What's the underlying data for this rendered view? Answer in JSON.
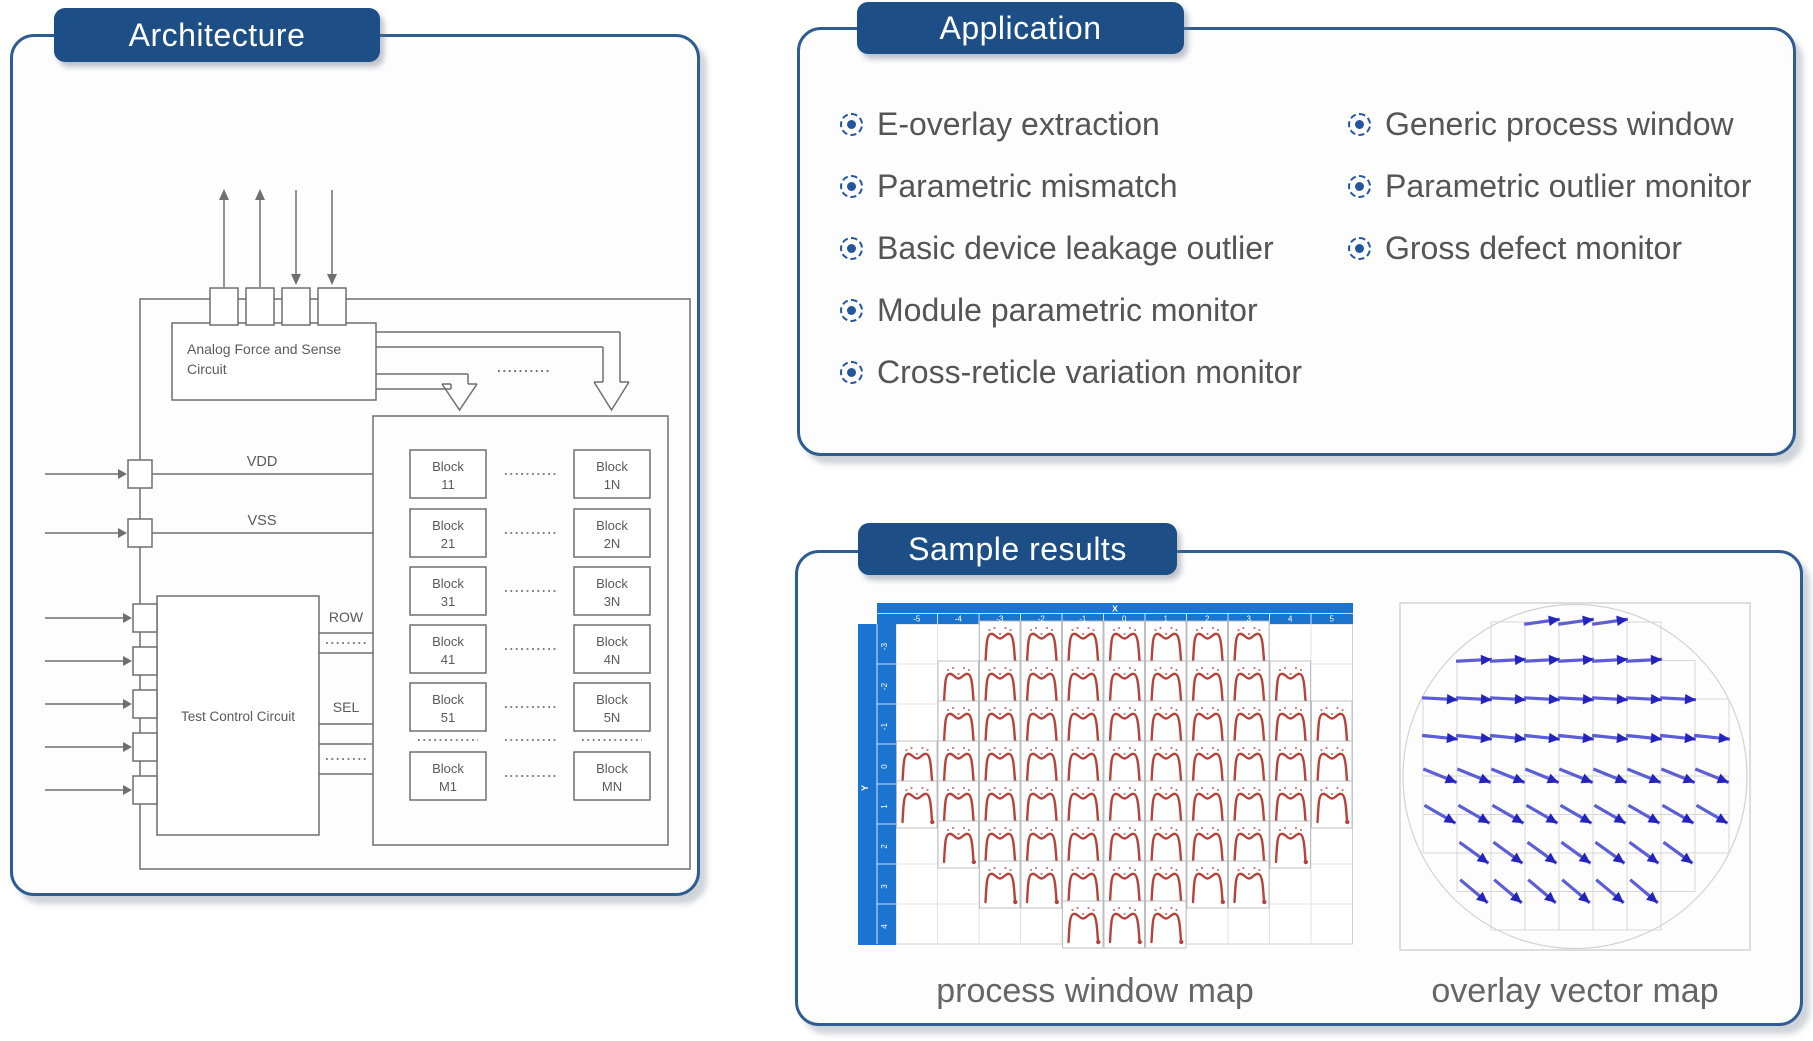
{
  "colors": {
    "panel_border": "#2f5d92",
    "badge_background": "#1d4e85",
    "map_header_blue": "#1b74d0",
    "curve_red": "#b5423b",
    "vector_arrow_blue": "#2424bc",
    "diagram_stroke_gray": "#6f6f6f",
    "text_gray": "#555555"
  },
  "architecture": {
    "title": "Architecture",
    "afs_label": "Analog Force and Sense Circuit",
    "tcc_label": "Test Control Circuit",
    "vdd_label": "VDD",
    "vss_label": "VSS",
    "row_label": "ROW",
    "sel_label": "SEL",
    "block_rows": [
      [
        "Block 11",
        "Block 1N"
      ],
      [
        "Block 21",
        "Block 2N"
      ],
      [
        "Block 31",
        "Block 3N"
      ],
      [
        "Block 41",
        "Block 4N"
      ],
      [
        "Block 51",
        "Block 5N"
      ],
      [
        "Block M1",
        "Block MN"
      ]
    ]
  },
  "application": {
    "title": "Application",
    "items_left": [
      "E-overlay extraction",
      "Parametric mismatch",
      "Basic device leakage outlier",
      "Module parametric monitor",
      "Cross-reticle variation monitor"
    ],
    "items_right": [
      "Generic process window",
      "Parametric outlier monitor",
      "Gross defect monitor"
    ]
  },
  "sample_results": {
    "title": "Sample results",
    "process_window_map": {
      "caption": "process window map",
      "x_axis_label": "X",
      "y_axis_label": "Y",
      "x_ticks": [
        "-5",
        "-4",
        "-3",
        "-2",
        "-1",
        "0",
        "1",
        "2",
        "3",
        "4",
        "5"
      ],
      "y_ticks": [
        "-3",
        "-2",
        "-1",
        "0",
        "1",
        "2",
        "3",
        "4"
      ],
      "wafer_rows": [
        {
          "y": "-3",
          "from": -3,
          "to": 3
        },
        {
          "y": "-2",
          "from": -4,
          "to": 4
        },
        {
          "y": "-1",
          "from": -4,
          "to": 5
        },
        {
          "y": "0",
          "from": -5,
          "to": 5
        },
        {
          "y": "1",
          "from": -5,
          "to": 5
        },
        {
          "y": "2",
          "from": -4,
          "to": 4
        },
        {
          "y": "3",
          "from": -3,
          "to": 3
        },
        {
          "y": "4",
          "from": -1,
          "to": 1
        }
      ]
    },
    "overlay_vector_map": {
      "caption": "overlay vector map",
      "grid_rows": [
        {
          "start": 2,
          "end": 6
        },
        {
          "start": 1,
          "end": 7
        },
        {
          "start": 0,
          "end": 8
        },
        {
          "start": 0,
          "end": 8
        },
        {
          "start": 0,
          "end": 8
        },
        {
          "start": 0,
          "end": 8
        },
        {
          "start": 1,
          "end": 7
        },
        {
          "start": 2,
          "end": 6
        }
      ],
      "arrow_rows": [
        {
          "start": 3,
          "end": 5,
          "angle": -8
        },
        {
          "start": 1,
          "end": 6,
          "angle": -3
        },
        {
          "start": 0,
          "end": 7,
          "angle": 3
        },
        {
          "start": 0,
          "end": 8,
          "angle": 6
        },
        {
          "start": 0,
          "end": 8,
          "angle": 22
        },
        {
          "start": 0,
          "end": 8,
          "angle": 30
        },
        {
          "start": 1,
          "end": 7,
          "angle": 36
        },
        {
          "start": 1,
          "end": 6,
          "angle": 40
        }
      ]
    }
  }
}
